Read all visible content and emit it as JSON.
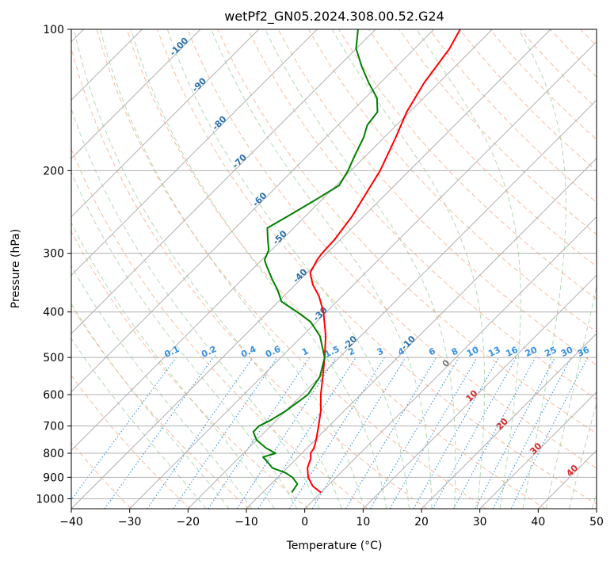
{
  "chart_data": {
    "type": "line",
    "title": "wetPf2_GN05.2024.308.00.52.G24",
    "xlabel": "Temperature (°C)",
    "ylabel": "Pressure (hPa)",
    "xlim": [
      -40,
      50
    ],
    "ylim": [
      1050,
      100
    ],
    "y_scale": "log",
    "skew_angle_deg": 45,
    "grid": true,
    "x_ticks": [
      -40,
      -30,
      -20,
      -10,
      0,
      10,
      20,
      30,
      40,
      50
    ],
    "x_tick_labels": [
      "−40",
      "−30",
      "−20",
      "−10",
      "0",
      "10",
      "20",
      "30",
      "40",
      "50"
    ],
    "y_ticks": [
      1000,
      900,
      800,
      700,
      600,
      500,
      400,
      300,
      200,
      100
    ],
    "y_tick_labels": [
      "1000",
      "900",
      "800",
      "700",
      "600",
      "500",
      "400",
      "300",
      "200",
      "100"
    ],
    "series": [
      {
        "role": "temperature",
        "color": "#ff0000",
        "points": [
          [
            970,
            0.0
          ],
          [
            940,
            -2.5
          ],
          [
            900,
            -4.8
          ],
          [
            860,
            -6.5
          ],
          [
            820,
            -7.6
          ],
          [
            800,
            -8.5
          ],
          [
            780,
            -8.8
          ],
          [
            750,
            -9.8
          ],
          [
            700,
            -11.8
          ],
          [
            650,
            -14.0
          ],
          [
            600,
            -16.8
          ],
          [
            550,
            -19.5
          ],
          [
            500,
            -22.5
          ],
          [
            450,
            -26.0
          ],
          [
            400,
            -30.5
          ],
          [
            370,
            -34.0
          ],
          [
            350,
            -37.0
          ],
          [
            330,
            -39.5
          ],
          [
            310,
            -40.5
          ],
          [
            300,
            -40.8
          ],
          [
            280,
            -41.0
          ],
          [
            250,
            -42.0
          ],
          [
            200,
            -45.0
          ],
          [
            170,
            -48.0
          ],
          [
            150,
            -50.5
          ],
          [
            130,
            -52.5
          ],
          [
            110,
            -54.0
          ],
          [
            100,
            -55.5
          ]
        ]
      },
      {
        "role": "dewpoint",
        "color": "#008000",
        "points": [
          [
            970,
            -5.0
          ],
          [
            930,
            -5.5
          ],
          [
            900,
            -7.5
          ],
          [
            880,
            -9.5
          ],
          [
            860,
            -12.5
          ],
          [
            840,
            -14.0
          ],
          [
            815,
            -16.0
          ],
          [
            800,
            -14.5
          ],
          [
            780,
            -17.0
          ],
          [
            750,
            -20.0
          ],
          [
            720,
            -22.0
          ],
          [
            700,
            -22.0
          ],
          [
            680,
            -21.0
          ],
          [
            650,
            -20.0
          ],
          [
            600,
            -19.0
          ],
          [
            550,
            -20.0
          ],
          [
            500,
            -22.5
          ],
          [
            450,
            -27.0
          ],
          [
            420,
            -31.0
          ],
          [
            400,
            -35.0
          ],
          [
            380,
            -39.5
          ],
          [
            360,
            -42.0
          ],
          [
            340,
            -45.0
          ],
          [
            320,
            -48.0
          ],
          [
            310,
            -49.5
          ],
          [
            295,
            -50.5
          ],
          [
            280,
            -52.5
          ],
          [
            265,
            -54.5
          ],
          [
            250,
            -53.0
          ],
          [
            230,
            -51.0
          ],
          [
            215,
            -49.5
          ],
          [
            200,
            -50.5
          ],
          [
            185,
            -52.0
          ],
          [
            170,
            -53.5
          ],
          [
            160,
            -55.0
          ],
          [
            150,
            -55.5
          ],
          [
            140,
            -58.0
          ],
          [
            130,
            -62.0
          ],
          [
            120,
            -66.0
          ],
          [
            110,
            -70.0
          ],
          [
            100,
            -73.0
          ]
        ]
      }
    ],
    "dry_adiabat_labels": [
      "-100",
      "-90",
      "-80",
      "-70",
      "-60",
      "-50",
      "-40",
      "-30",
      "-20",
      "-10"
    ],
    "moist_adiabat_labels": [
      "0",
      "10",
      "20",
      "30",
      "40"
    ],
    "mixing_ratio_labels": [
      "0.1",
      "0.2",
      "0.4",
      "0.6",
      "1",
      "1.5",
      "2",
      "3",
      "4",
      "6",
      "8",
      "10",
      "13",
      "16",
      "20",
      "25",
      "30",
      "36"
    ],
    "colors": {
      "isotherm": "#b0b0b0",
      "dry_adiabat": "#f5a57f",
      "moist_adiabat": "#9fd09f",
      "mixing_ratio": "#3590e0",
      "dry_label": "#2b6fa8",
      "moist_label": "#d62728"
    }
  }
}
